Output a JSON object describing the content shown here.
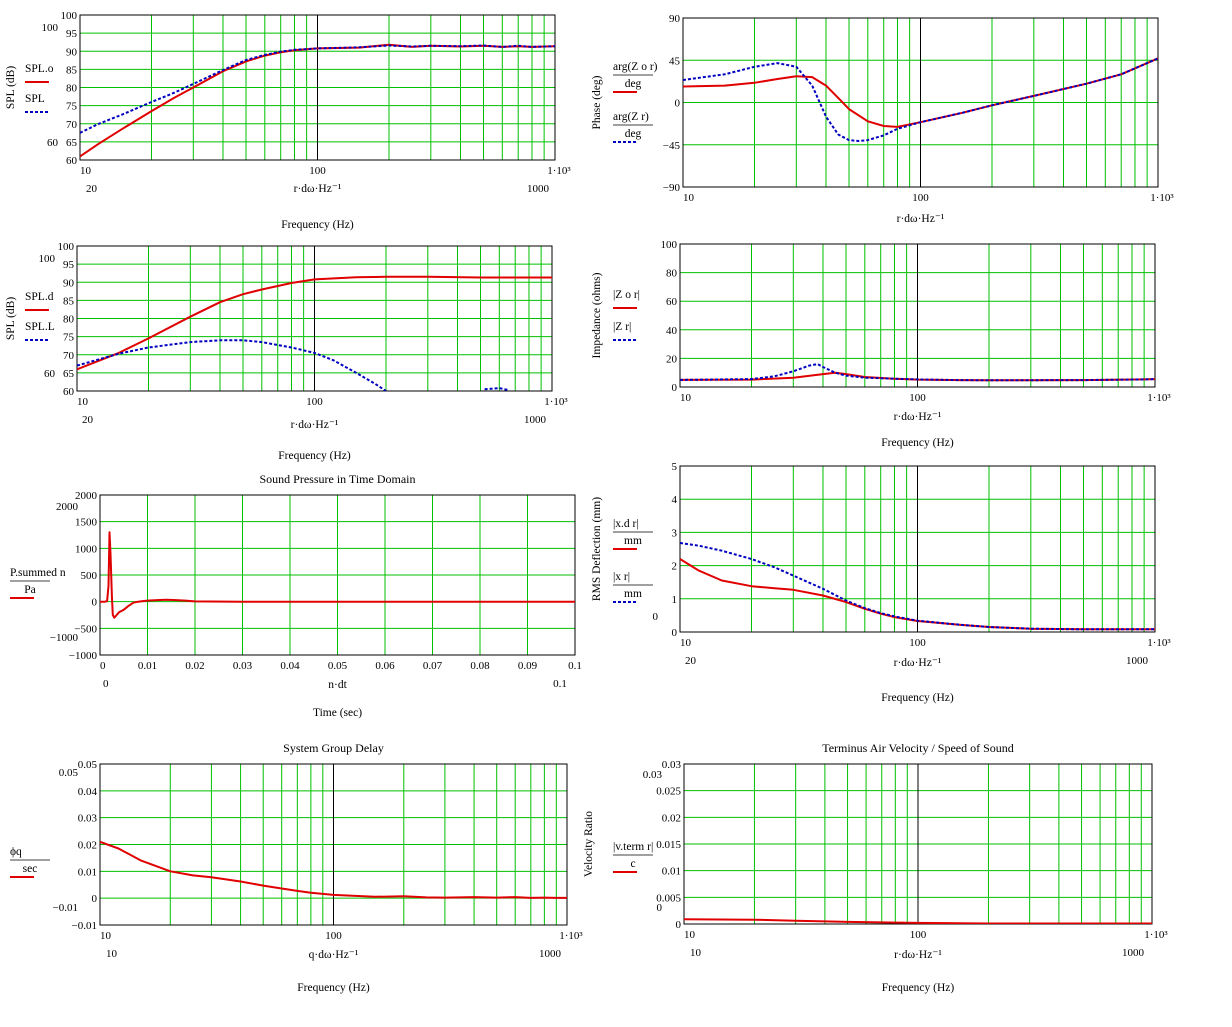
{
  "colors": {
    "grid": "#00c000",
    "frame": "#000000",
    "red": "#e00000",
    "blue": "#0000c0",
    "background": "#ffffff"
  },
  "chart_data": [
    {
      "id": "c1",
      "type": "line",
      "title": "",
      "xlabel": "r·dω·Hz⁻¹",
      "xaxis_title": "Frequency (Hz)",
      "ylabel": "SPL (dB)",
      "xscale": "log",
      "xlim": [
        10,
        1000
      ],
      "ylim": [
        60,
        100
      ],
      "xticks": [
        "10",
        "100",
        "1·10³"
      ],
      "yticks": [
        "60",
        "65",
        "70",
        "75",
        "80",
        "85",
        "90",
        "95",
        "100"
      ],
      "x_markers": [
        "20",
        "1000"
      ],
      "y_markers": [
        "100",
        "60"
      ],
      "legend": [
        {
          "label": "SPL.o",
          "sub": "r",
          "style": "solid",
          "color": "red"
        },
        {
          "label": "SPL",
          "sub": "r",
          "style": "dotted",
          "color": "blue"
        }
      ],
      "series": [
        {
          "name": "SPL.o",
          "color": "red",
          "style": "solid",
          "x": [
            10,
            12,
            15,
            20,
            25,
            30,
            40,
            50,
            60,
            70,
            80,
            100,
            150,
            200,
            250,
            300,
            400,
            500,
            600,
            700,
            800,
            1000,
            1100
          ],
          "y": [
            61,
            64.5,
            68.5,
            73.5,
            77.2,
            80,
            84.5,
            87.2,
            88.8,
            89.7,
            90.3,
            90.8,
            91,
            91.8,
            91.2,
            91.5,
            91.3,
            91.5,
            91.2,
            91.4,
            91.2,
            91.4,
            91.2
          ]
        },
        {
          "name": "SPL",
          "color": "blue",
          "style": "dotted",
          "x": [
            10,
            12,
            15,
            20,
            25,
            30,
            40,
            50,
            60,
            70,
            80,
            100,
            150,
            200,
            250,
            300,
            400,
            500,
            600,
            700,
            800,
            1000,
            1100
          ],
          "y": [
            67.5,
            70,
            72.5,
            76,
            78.6,
            81,
            84.8,
            87.6,
            89,
            89.9,
            90.4,
            90.8,
            91.1,
            91.6,
            91.3,
            91.5,
            91.4,
            91.6,
            91.2,
            91.5,
            91.2,
            91.4,
            91.2
          ]
        }
      ]
    },
    {
      "id": "c2",
      "type": "line",
      "title": "",
      "xlabel": "r·dω·Hz⁻¹",
      "xaxis_title": "",
      "ylabel": "Phase (deg)",
      "xscale": "log",
      "xlim": [
        10,
        1000
      ],
      "ylim": [
        -90,
        90
      ],
      "xticks": [
        "10",
        "100",
        "1·10³"
      ],
      "yticks": [
        "−90",
        "−45",
        "0",
        "45",
        "90"
      ],
      "x_markers": [],
      "y_markers": [],
      "legend": [
        {
          "label": "arg(Z o r)",
          "denom": "deg",
          "style": "solid",
          "color": "red"
        },
        {
          "label": "arg(Z r)",
          "denom": "deg",
          "style": "dotted",
          "color": "blue"
        }
      ],
      "series": [
        {
          "name": "arg(Zo)",
          "color": "red",
          "style": "solid",
          "x": [
            10,
            15,
            20,
            25,
            30,
            35,
            40,
            45,
            50,
            60,
            70,
            80,
            100,
            150,
            200,
            300,
            500,
            700,
            1000
          ],
          "y": [
            17,
            18,
            21,
            25,
            28,
            27,
            18,
            5,
            -7,
            -20,
            -25,
            -26,
            -21,
            -11,
            -3,
            7,
            20,
            30,
            47
          ]
        },
        {
          "name": "arg(Z)",
          "color": "blue",
          "style": "dotted",
          "x": [
            10,
            15,
            20,
            25,
            30,
            35,
            40,
            45,
            50,
            55,
            60,
            70,
            80,
            100,
            150,
            200,
            300,
            500,
            700,
            1000
          ],
          "y": [
            24,
            30,
            38,
            42,
            38,
            18,
            -15,
            -34,
            -40,
            -41,
            -40,
            -35,
            -28,
            -21,
            -11,
            -3,
            7,
            20,
            30,
            47
          ]
        }
      ]
    },
    {
      "id": "c3",
      "type": "line",
      "title": "",
      "xlabel": "r·dω·Hz⁻¹",
      "xaxis_title": "Frequency (Hz)",
      "ylabel": "SPL (dB)",
      "xscale": "log",
      "xlim": [
        10,
        1000
      ],
      "ylim": [
        60,
        100
      ],
      "xticks": [
        "10",
        "100",
        "1·10³"
      ],
      "yticks": [
        "60",
        "65",
        "70",
        "75",
        "80",
        "85",
        "90",
        "95",
        "100"
      ],
      "x_markers": [
        "20",
        "1000"
      ],
      "y_markers": [
        "100",
        "60"
      ],
      "legend": [
        {
          "label": "SPL.d",
          "sub": "r",
          "style": "solid",
          "color": "red"
        },
        {
          "label": "SPL.L",
          "sub": "r",
          "style": "dotted",
          "color": "blue"
        }
      ],
      "series": [
        {
          "name": "SPL.d",
          "color": "red",
          "style": "solid",
          "x": [
            10,
            15,
            20,
            30,
            40,
            50,
            60,
            80,
            100,
            150,
            200,
            300,
            500,
            1000
          ],
          "y": [
            66,
            70.5,
            74.5,
            80.5,
            84.5,
            86.7,
            88,
            89.8,
            90.8,
            91.4,
            91.5,
            91.5,
            91.3,
            91.3
          ]
        },
        {
          "name": "SPL.L",
          "color": "blue",
          "style": "dotted",
          "x": [
            10,
            15,
            20,
            30,
            40,
            50,
            60,
            80,
            100,
            120,
            150,
            180,
            200
          ],
          "y": [
            67,
            70.3,
            72,
            73.5,
            74,
            74,
            73.5,
            72,
            70.5,
            68.5,
            65,
            62,
            60
          ]
        },
        {
          "name": "SPL.L (tail)",
          "color": "blue",
          "style": "dotted",
          "x": [
            520,
            600,
            650
          ],
          "y": [
            60.5,
            60.8,
            60.3
          ]
        }
      ]
    },
    {
      "id": "c4",
      "type": "line",
      "title": "",
      "xlabel": "r·dω·Hz⁻¹",
      "xaxis_title": "Frequency (Hz)",
      "ylabel": "Impedance (ohms)",
      "xscale": "log",
      "xlim": [
        10,
        1000
      ],
      "ylim": [
        0,
        100
      ],
      "xticks": [
        "10",
        "100",
        "1·10³"
      ],
      "yticks": [
        "0",
        "20",
        "40",
        "60",
        "80",
        "100"
      ],
      "x_markers": [],
      "y_markers": [],
      "legend": [
        {
          "label": "|Z o r|",
          "style": "solid",
          "color": "red"
        },
        {
          "label": "|Z r|",
          "style": "dotted",
          "color": "blue"
        }
      ],
      "series": [
        {
          "name": "|Zo|",
          "color": "red",
          "style": "solid",
          "x": [
            10,
            20,
            30,
            40,
            45,
            50,
            60,
            80,
            100,
            150,
            200,
            500,
            900,
            1000
          ],
          "y": [
            5,
            5.2,
            6.5,
            9,
            10,
            9,
            7,
            5.7,
            5.2,
            4.8,
            4.7,
            4.8,
            5.3,
            5.5
          ]
        },
        {
          "name": "|Z|",
          "color": "blue",
          "style": "dotted",
          "x": [
            10,
            20,
            25,
            30,
            35,
            38,
            40,
            45,
            50,
            60,
            80,
            100,
            150,
            200,
            500,
            900,
            1000
          ],
          "y": [
            5,
            5.5,
            7.5,
            11,
            15,
            16,
            14,
            10,
            8,
            6.5,
            5.8,
            5.3,
            4.8,
            4.7,
            4.8,
            5.3,
            5.5
          ]
        }
      ]
    },
    {
      "id": "c5",
      "type": "line",
      "title": "Sound Pressure in Time Domain",
      "xlabel": "n·dt",
      "xaxis_title": "Time (sec)",
      "ylabel": "",
      "xscale": "linear",
      "xlim": [
        0,
        0.1
      ],
      "ylim": [
        -1000,
        2000
      ],
      "xticks": [
        "0",
        "0.01",
        "0.02",
        "0.03",
        "0.04",
        "0.05",
        "0.06",
        "0.07",
        "0.08",
        "0.09",
        "0.1"
      ],
      "yticks": [
        "−1000",
        "−500",
        "0",
        "500",
        "1000",
        "1500",
        "2000"
      ],
      "x_markers": [
        "0",
        "0.1"
      ],
      "y_markers": [
        "2000",
        "−1000"
      ],
      "legend": [
        {
          "label": "P.summed n",
          "denom": "Pa",
          "style": "solid",
          "color": "red"
        }
      ],
      "series": [
        {
          "name": "P.summed",
          "color": "red",
          "style": "solid",
          "x": [
            0,
            0.001,
            0.0015,
            0.0018,
            0.002,
            0.0022,
            0.0025,
            0.0027,
            0.003,
            0.0035,
            0.004,
            0.005,
            0.006,
            0.007,
            0.008,
            0.009,
            0.01,
            0.012,
            0.014,
            0.016,
            0.018,
            0.02,
            0.03,
            0.1
          ],
          "y": [
            0,
            0,
            10,
            300,
            1300,
            900,
            100,
            -250,
            -300,
            -250,
            -200,
            -150,
            -80,
            -20,
            0,
            10,
            20,
            30,
            35,
            30,
            20,
            5,
            0,
            0
          ]
        }
      ]
    },
    {
      "id": "c6",
      "type": "line",
      "title": "",
      "xlabel": "r·dω·Hz⁻¹",
      "xaxis_title": "Frequency (Hz)",
      "ylabel": "RMS Deflection (mm)",
      "xscale": "log",
      "xlim": [
        10,
        1000
      ],
      "ylim": [
        0,
        5
      ],
      "xticks": [
        "10",
        "100",
        "1·10³"
      ],
      "yticks": [
        "0",
        "1",
        "2",
        "3",
        "4",
        "5"
      ],
      "x_markers": [
        "20",
        "1000"
      ],
      "y_markers": [
        "0"
      ],
      "legend": [
        {
          "label": "|x.d r|",
          "denom": "mm",
          "style": "solid",
          "color": "red"
        },
        {
          "label": "|x r|",
          "denom": "mm",
          "style": "dotted",
          "color": "blue"
        }
      ],
      "series": [
        {
          "name": "|x.d|",
          "color": "red",
          "style": "solid",
          "x": [
            10,
            12,
            15,
            20,
            25,
            30,
            40,
            50,
            60,
            70,
            80,
            100,
            150,
            200,
            300,
            500,
            1000
          ],
          "y": [
            2.2,
            1.85,
            1.55,
            1.38,
            1.32,
            1.27,
            1.1,
            0.9,
            0.7,
            0.55,
            0.45,
            0.33,
            0.22,
            0.15,
            0.1,
            0.08,
            0.08
          ]
        },
        {
          "name": "|x|",
          "color": "blue",
          "style": "dotted",
          "x": [
            10,
            12,
            15,
            20,
            25,
            30,
            40,
            50,
            60,
            70,
            80,
            100,
            150,
            200,
            300,
            500,
            1000
          ],
          "y": [
            2.68,
            2.6,
            2.45,
            2.2,
            1.95,
            1.7,
            1.3,
            0.95,
            0.72,
            0.57,
            0.47,
            0.34,
            0.22,
            0.15,
            0.1,
            0.08,
            0.08
          ]
        }
      ]
    },
    {
      "id": "c7",
      "type": "line",
      "title": "System Group Delay",
      "xlabel": "q·dω·Hz⁻¹",
      "xaxis_title": "Frequency (Hz)",
      "ylabel": "",
      "xscale": "log",
      "xlim": [
        10,
        1000
      ],
      "ylim": [
        -0.01,
        0.05
      ],
      "xticks": [
        "10",
        "100",
        "1·10³"
      ],
      "yticks": [
        "−0.01",
        "0",
        "0.01",
        "0.02",
        "0.03",
        "0.04",
        "0.05"
      ],
      "x_markers": [
        "10",
        "1000"
      ],
      "y_markers": [
        "0.05",
        "−0.01"
      ],
      "legend": [
        {
          "label": "ϕq",
          "denom": "sec",
          "style": "solid",
          "color": "red"
        }
      ],
      "series": [
        {
          "name": "phi_q",
          "color": "red",
          "style": "solid",
          "x": [
            10,
            12,
            15,
            20,
            25,
            30,
            40,
            50,
            60,
            70,
            80,
            100,
            150,
            200,
            250,
            300,
            400,
            500,
            600,
            700,
            800,
            900,
            1000
          ],
          "y": [
            0.021,
            0.0185,
            0.014,
            0.01,
            0.0085,
            0.0078,
            0.0062,
            0.0047,
            0.0036,
            0.0027,
            0.002,
            0.0012,
            0.0005,
            0.0007,
            0.0003,
            0.0002,
            0.0004,
            0.0002,
            0.0004,
            0.0001,
            0.0002,
            0.0001,
            0.0001
          ]
        }
      ]
    },
    {
      "id": "c8",
      "type": "line",
      "title": "Terminus Air Velocity / Speed of Sound",
      "xlabel": "r·dω·Hz⁻¹",
      "xaxis_title": "Frequency (Hz)",
      "ylabel": "Velocity Ratio",
      "xscale": "log",
      "xlim": [
        10,
        1000
      ],
      "ylim": [
        0,
        0.03
      ],
      "xticks": [
        "10",
        "100",
        "1·10³"
      ],
      "yticks": [
        "0",
        "0.005",
        "0.01",
        "0.015",
        "0.02",
        "0.025",
        "0.03"
      ],
      "x_markers": [
        "10",
        "1000"
      ],
      "y_markers": [
        "0.03",
        "0"
      ],
      "legend": [
        {
          "label": "|v.term r|",
          "denom": "c",
          "style": "solid",
          "color": "red"
        }
      ],
      "series": [
        {
          "name": "|v.term|/c",
          "color": "red",
          "style": "solid",
          "x": [
            10,
            20,
            30,
            50,
            100,
            200,
            500,
            1000
          ],
          "y": [
            0.0009,
            0.0008,
            0.0006,
            0.0004,
            0.0002,
            0.0001,
            0.0001,
            0.0001
          ]
        }
      ]
    }
  ]
}
